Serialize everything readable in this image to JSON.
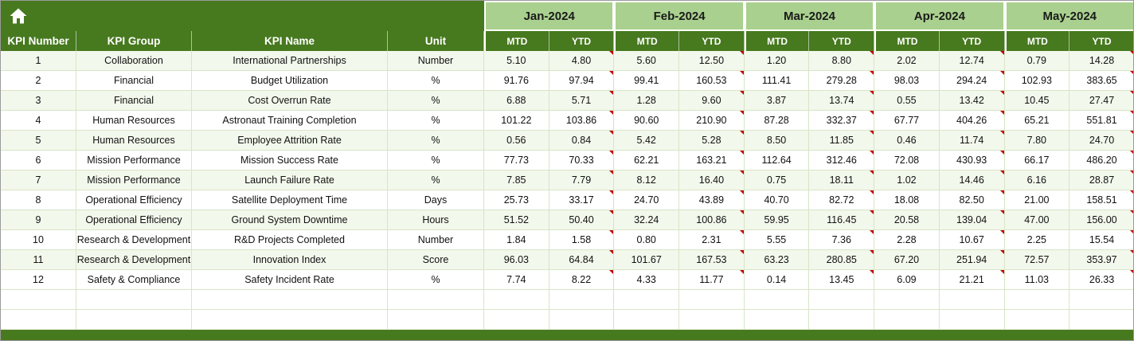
{
  "sheet": {
    "months": [
      "Jan-2024",
      "Feb-2024",
      "Mar-2024",
      "Apr-2024",
      "May-2024"
    ],
    "sub_headers": [
      "MTD",
      "YTD"
    ],
    "fixed_headers": [
      "KPI Number",
      "KPI Group",
      "KPI Name",
      "Unit"
    ],
    "rows": [
      {
        "number": "1",
        "group": "Collaboration",
        "name": "International Partnerships",
        "unit": "Number",
        "values": [
          "5.10",
          "4.80",
          "5.60",
          "12.50",
          "1.20",
          "8.80",
          "2.02",
          "12.74",
          "0.79",
          "14.28"
        ]
      },
      {
        "number": "2",
        "group": "Financial",
        "name": "Budget Utilization",
        "unit": "%",
        "values": [
          "91.76",
          "97.94",
          "99.41",
          "160.53",
          "111.41",
          "279.28",
          "98.03",
          "294.24",
          "102.93",
          "383.65"
        ]
      },
      {
        "number": "3",
        "group": "Financial",
        "name": "Cost Overrun Rate",
        "unit": "%",
        "values": [
          "6.88",
          "5.71",
          "1.28",
          "9.60",
          "3.87",
          "13.74",
          "0.55",
          "13.42",
          "10.45",
          "27.47"
        ]
      },
      {
        "number": "4",
        "group": "Human Resources",
        "name": "Astronaut Training Completion",
        "unit": "%",
        "values": [
          "101.22",
          "103.86",
          "90.60",
          "210.90",
          "87.28",
          "332.37",
          "67.77",
          "404.26",
          "65.21",
          "551.81"
        ]
      },
      {
        "number": "5",
        "group": "Human Resources",
        "name": "Employee Attrition Rate",
        "unit": "%",
        "values": [
          "0.56",
          "0.84",
          "5.42",
          "5.28",
          "8.50",
          "11.85",
          "0.46",
          "11.74",
          "7.80",
          "24.70"
        ]
      },
      {
        "number": "6",
        "group": "Mission Performance",
        "name": "Mission Success Rate",
        "unit": "%",
        "values": [
          "77.73",
          "70.33",
          "62.21",
          "163.21",
          "112.64",
          "312.46",
          "72.08",
          "430.93",
          "66.17",
          "486.20"
        ]
      },
      {
        "number": "7",
        "group": "Mission Performance",
        "name": "Launch Failure Rate",
        "unit": "%",
        "values": [
          "7.85",
          "7.79",
          "8.12",
          "16.40",
          "0.75",
          "18.11",
          "1.02",
          "14.46",
          "6.16",
          "28.87"
        ]
      },
      {
        "number": "8",
        "group": "Operational Efficiency",
        "name": "Satellite Deployment Time",
        "unit": "Days",
        "values": [
          "25.73",
          "33.17",
          "24.70",
          "43.89",
          "40.70",
          "82.72",
          "18.08",
          "82.50",
          "21.00",
          "158.51"
        ]
      },
      {
        "number": "9",
        "group": "Operational Efficiency",
        "name": "Ground System Downtime",
        "unit": "Hours",
        "values": [
          "51.52",
          "50.40",
          "32.24",
          "100.86",
          "59.95",
          "116.45",
          "20.58",
          "139.04",
          "47.00",
          "156.00"
        ]
      },
      {
        "number": "10",
        "group": "Research & Development",
        "name": "R&D Projects Completed",
        "unit": "Number",
        "values": [
          "1.84",
          "1.58",
          "0.80",
          "2.31",
          "5.55",
          "7.36",
          "2.28",
          "10.67",
          "2.25",
          "15.54"
        ]
      },
      {
        "number": "11",
        "group": "Research & Development",
        "name": "Innovation Index",
        "unit": "Score",
        "values": [
          "96.03",
          "64.84",
          "101.67",
          "167.53",
          "63.23",
          "280.85",
          "67.20",
          "251.94",
          "72.57",
          "353.97"
        ]
      },
      {
        "number": "12",
        "group": "Safety & Compliance",
        "name": "Safety Incident Rate",
        "unit": "%",
        "values": [
          "7.74",
          "8.22",
          "4.33",
          "11.77",
          "0.14",
          "13.45",
          "6.09",
          "21.21",
          "11.03",
          "26.33"
        ]
      }
    ],
    "empty_row_count": 2
  },
  "icons": {
    "home": "home-icon"
  },
  "colors": {
    "header_dark": "#47791f",
    "header_light": "#a9d08e",
    "row_band": "#f2f8ec",
    "gridline": "#d8e5c6",
    "note_marker": "#c00000"
  }
}
